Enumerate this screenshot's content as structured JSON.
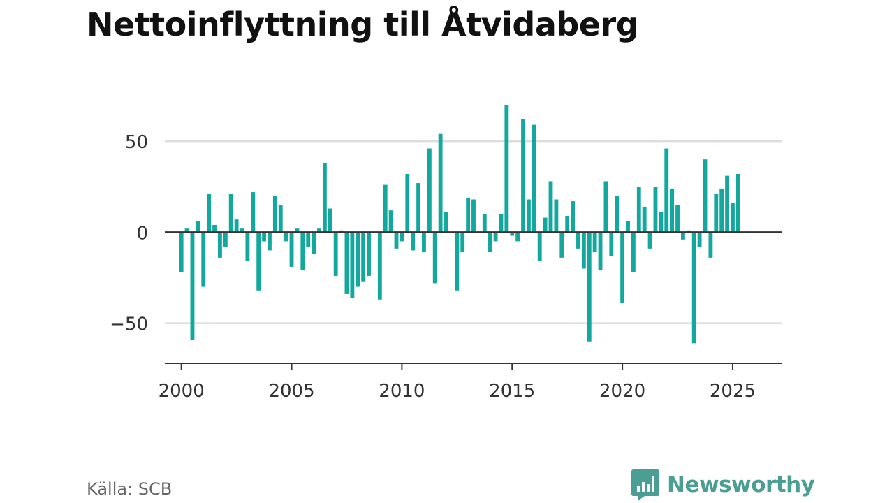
{
  "title": "Nettoinflyttning till Åtvidaberg",
  "source": "Källa: SCB",
  "brand": {
    "name": "Newsworthy",
    "icon": "newsworthy-logo-icon"
  },
  "colors": {
    "bar": "#13a89e",
    "grid": "#dddddd",
    "axis": "#333333",
    "brand": "#4a9e93"
  },
  "chart_data": {
    "type": "bar",
    "title": "Nettoinflyttning till Åtvidaberg",
    "xlabel": "",
    "ylabel": "",
    "grid": true,
    "xlim": [
      1999.25,
      2027.25
    ],
    "ylim": [
      -72,
      70
    ],
    "xticks": [
      2000,
      2005,
      2010,
      2015,
      2020,
      2025
    ],
    "yticks": [
      -50,
      0,
      50
    ],
    "ytick_labels": [
      "−50",
      "0",
      "50"
    ],
    "series": [
      {
        "frequency": "quarterly",
        "start": "2000-Q1",
        "values": [
          -22,
          2,
          -59,
          6,
          -30,
          21,
          4,
          -14,
          -8,
          21,
          7,
          2,
          -16,
          22,
          -32,
          -5,
          -10,
          20,
          15,
          -5,
          -19,
          2,
          -21,
          -8,
          -12,
          2,
          38,
          13,
          -24,
          1,
          -34,
          -36,
          -30,
          -27,
          -24,
          0,
          -37,
          26,
          12,
          -9,
          -5,
          32,
          -10,
          27,
          -11,
          46,
          -28,
          54,
          11,
          0,
          -32,
          -11,
          19,
          18,
          0,
          10,
          -11,
          -5,
          10,
          70,
          -2,
          -5,
          62,
          18,
          59,
          -16,
          8,
          28,
          18,
          -14,
          9,
          17,
          -9,
          -20,
          -60,
          -11,
          -21,
          28,
          -13,
          20,
          -39,
          6,
          -22,
          25,
          14,
          -9,
          25,
          11,
          46,
          24,
          15,
          -4,
          1,
          -61,
          -8,
          40,
          -14,
          21,
          24,
          31,
          16,
          32
        ]
      }
    ]
  }
}
